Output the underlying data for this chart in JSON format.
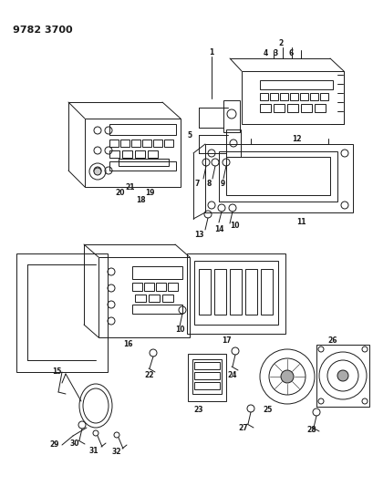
{
  "title": "9782 3700",
  "background_color": "#ffffff",
  "line_color": "#1a1a1a",
  "figsize": [
    4.1,
    5.33
  ],
  "dpi": 100
}
